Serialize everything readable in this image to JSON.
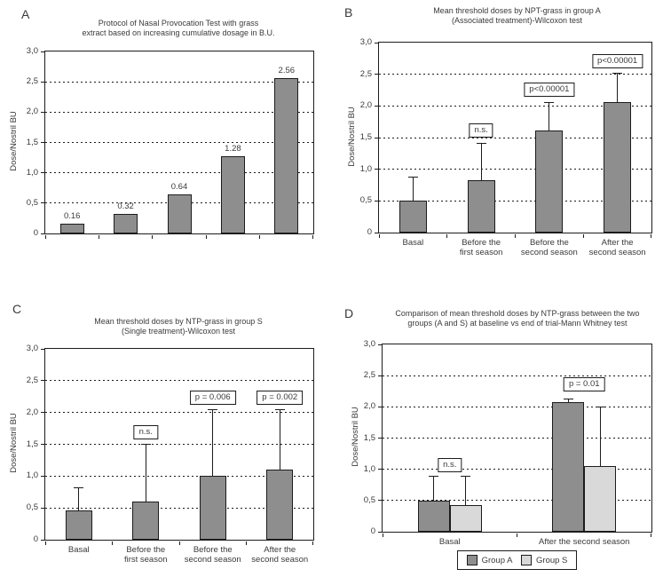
{
  "figure_ylabel": "Dose/Nostril BU",
  "colors": {
    "dark_bar": "#8e8e8e",
    "light_bar": "#d9d9d9",
    "line": "#1c1c1c",
    "text": "#3a3a3a",
    "background": "#ffffff"
  },
  "chart_data": [
    {
      "type": "bar",
      "panel_letter": "A",
      "title": "Protocol of Nasal Provocation Test with grass extract based on increasing cumulative dosage in B.U.",
      "title_lines": [
        "Protocol of Nasal Provocation Test with grass",
        "extract based on increasing cumulative dosage in B.U."
      ],
      "ylabel": "Dose/Nostril BU",
      "ylim": [
        0,
        3
      ],
      "ytick_labels": [
        "0",
        "0,5",
        "1,0",
        "1,5",
        "2,0",
        "2,5",
        "3,0"
      ],
      "grid": true,
      "legend_position": "none",
      "categories": [
        "",
        "",
        "",
        "",
        ""
      ],
      "values": [
        0.16,
        0.32,
        0.64,
        1.28,
        2.56
      ],
      "bar_labels": [
        "0.16",
        "0.32",
        "0.64",
        "1.28",
        "2.56"
      ],
      "bar_color": "#8e8e8e"
    },
    {
      "type": "bar",
      "panel_letter": "B",
      "title": "Mean threshold doses by NPT-grass in group A (Associated treatment)-Wilcoxon test",
      "title_lines": [
        "Mean threshold doses by NPT-grass in group A",
        "(Associated treatment)-Wilcoxon test"
      ],
      "ylabel": "Dose/Nostril BU",
      "ylim": [
        0,
        3
      ],
      "ytick_labels": [
        "0",
        "0,5",
        "1,0",
        "1,5",
        "2,0",
        "2,5",
        "3,0"
      ],
      "grid": true,
      "legend_position": "none",
      "categories": [
        [
          "Basal"
        ],
        [
          "Before the",
          "first season"
        ],
        [
          "Before the",
          "second season"
        ],
        [
          "After the",
          "second season"
        ]
      ],
      "values": [
        0.5,
        0.83,
        1.61,
        2.06
      ],
      "errors_upper": [
        0.87,
        1.41,
        2.05,
        2.51
      ],
      "annotations": [
        {
          "cat": 1,
          "text": "n.s.",
          "y": 1.5
        },
        {
          "cat": 2,
          "text": "p<0.00001",
          "y": 2.15
        },
        {
          "cat": 3,
          "text": "p<0.00001",
          "y": 2.59
        }
      ],
      "bar_color": "#8e8e8e"
    },
    {
      "type": "bar",
      "panel_letter": "C",
      "title": "Mean threshold doses by NTP-grass in group S (Single treatment)-Wilcoxon test",
      "title_lines": [
        "Mean threshold doses by NTP-grass in group S",
        "(Single treatment)-Wilcoxon test"
      ],
      "ylabel": "Dose/Nostril BU",
      "ylim": [
        0,
        3
      ],
      "ytick_labels": [
        "0",
        "0,5",
        "1,0",
        "1,5",
        "2,0",
        "2,5",
        "3,0"
      ],
      "grid": true,
      "legend_position": "none",
      "categories": [
        [
          "Basal"
        ],
        [
          "Before the",
          "first season"
        ],
        [
          "Before the",
          "second season"
        ],
        [
          "After the",
          "second season"
        ]
      ],
      "values": [
        0.46,
        0.6,
        1.0,
        1.1
      ],
      "errors_upper": [
        0.82,
        1.5,
        2.05,
        2.05
      ],
      "annotations": [
        {
          "cat": 1,
          "text": "n.s.",
          "y": 1.58
        },
        {
          "cat": 2,
          "text": "p = 0.006",
          "y": 2.12
        },
        {
          "cat": 3,
          "text": "p = 0.002",
          "y": 2.12
        }
      ],
      "bar_color": "#8e8e8e"
    },
    {
      "type": "bar",
      "panel_letter": "D",
      "title": "Comparison of mean threshold doses by NTP-grass between the two groups (A and S) at baseline vs end of trial-Mann Whitney test",
      "title_lines": [
        "Comparison of mean threshold doses by NTP-grass between the two",
        "groups (A and S) at baseline vs end of trial-Mann Whitney test"
      ],
      "ylabel": "Dose/Nostril BU",
      "ylim": [
        0,
        3
      ],
      "ytick_labels": [
        "0",
        "0,5",
        "1,0",
        "1,5",
        "2,0",
        "2,5",
        "3,0"
      ],
      "grid": true,
      "legend_position": "bottom",
      "categories": [
        "Basal",
        "After the second season"
      ],
      "series": [
        {
          "name": "Group A",
          "color": "#8e8e8e",
          "values": [
            0.5,
            2.08
          ],
          "errors_upper": [
            0.89,
            2.13
          ]
        },
        {
          "name": "Group S",
          "color": "#d9d9d9",
          "values": [
            0.43,
            1.05
          ],
          "errors_upper": [
            0.89,
            2.0
          ]
        }
      ],
      "annotations": [
        {
          "cat": 0,
          "text": "n.s.",
          "y": 0.95
        },
        {
          "cat": 1,
          "text": "p = 0.01",
          "y": 2.24
        }
      ]
    }
  ]
}
